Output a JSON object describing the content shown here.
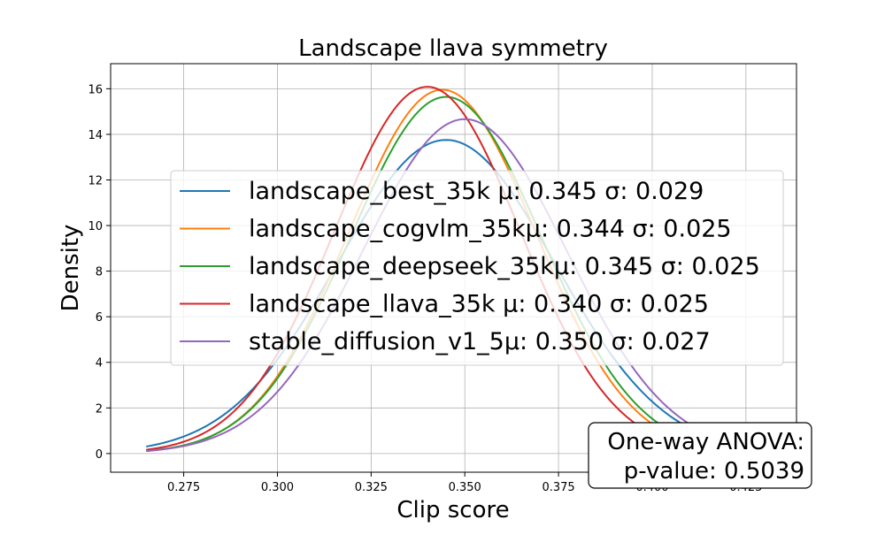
{
  "chart_data": {
    "type": "line",
    "title": "Landscape llava symmetry",
    "xlabel": "Clip score",
    "ylabel": "Density",
    "xlim": [
      0.2555,
      0.4385
    ],
    "ylim": [
      -0.82,
      17.1
    ],
    "x_ticks": [
      "0.275",
      "0.300",
      "0.325",
      "0.350",
      "0.375",
      "0.400",
      "0.425"
    ],
    "y_ticks": [
      "0",
      "2",
      "4",
      "6",
      "8",
      "10",
      "12",
      "14",
      "16"
    ],
    "grid": true,
    "legend_position": "center",
    "curve_kind": "normal density",
    "x_range": [
      0.265,
      0.43
    ],
    "series": [
      {
        "name": "landscape_best_35k",
        "label": "landscape_best_35k  μ: 0.345 σ: 0.029",
        "mean": 0.345,
        "std": 0.029,
        "color": "#1f77b4"
      },
      {
        "name": "landscape_cogvlm_35k",
        "label": "landscape_cogvlm_35kμ: 0.344 σ: 0.025",
        "mean": 0.344,
        "std": 0.025,
        "color": "#ff7f0e"
      },
      {
        "name": "landscape_deepseek_35k",
        "label": "landscape_deepseek_35kμ: 0.345 σ: 0.025",
        "mean": 0.345,
        "std": 0.0255,
        "color": "#2ca02c"
      },
      {
        "name": "landscape_llava_35k",
        "label": "landscape_llava_35k μ: 0.340 σ: 0.025",
        "mean": 0.34,
        "std": 0.0248,
        "color": "#d62728"
      },
      {
        "name": "stable_diffusion_v1_5",
        "label": "stable_diffusion_v1_5μ: 0.350 σ: 0.027",
        "mean": 0.35,
        "std": 0.0272,
        "color": "#9467bd"
      }
    ],
    "annotation": {
      "line1": "One-way ANOVA:",
      "line2": "p-value: 0.5039"
    }
  }
}
